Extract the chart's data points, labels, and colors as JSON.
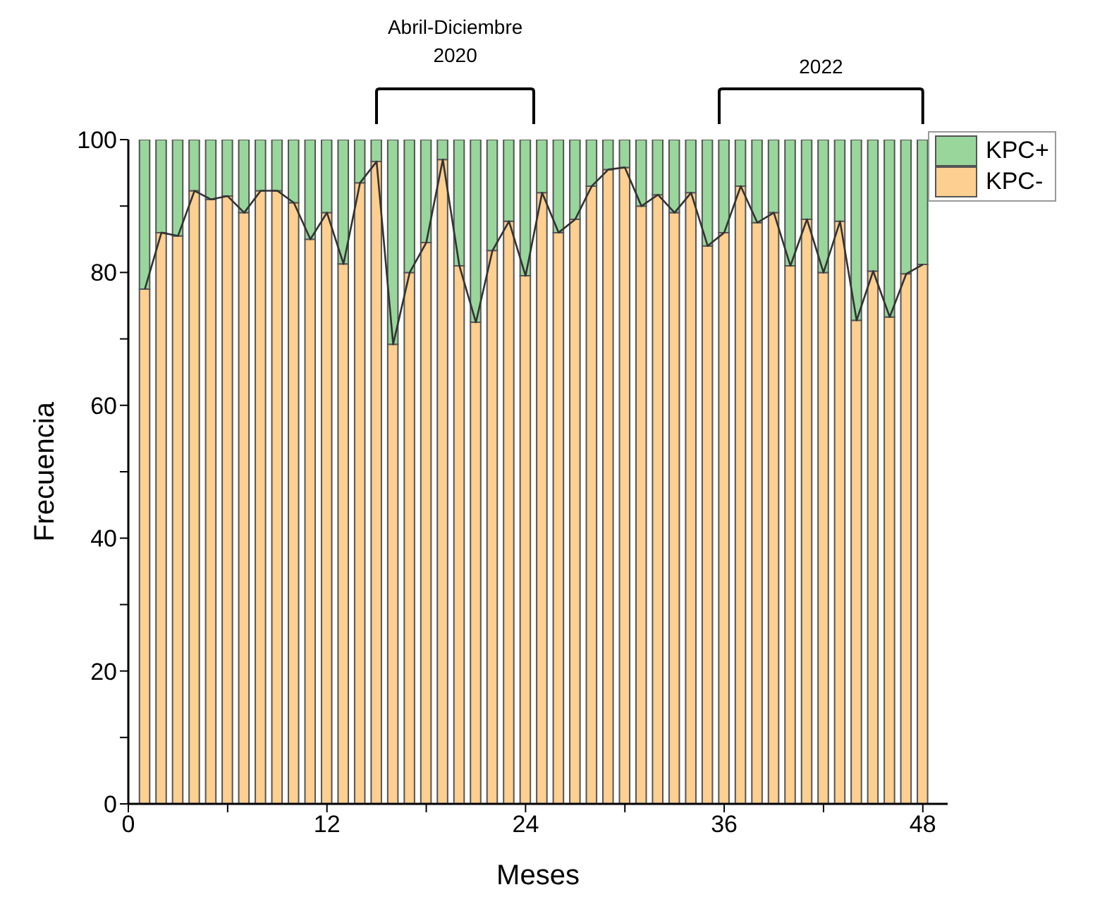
{
  "chart_data": {
    "type": "bar",
    "stacked": true,
    "xlabel": "Meses",
    "ylabel": "Frecuencia",
    "annotations": [
      "Abril-Diciembre 2020",
      "2022"
    ],
    "x": [
      1,
      2,
      3,
      4,
      5,
      6,
      7,
      8,
      9,
      10,
      11,
      12,
      13,
      14,
      15,
      16,
      17,
      18,
      19,
      20,
      21,
      22,
      23,
      24,
      25,
      26,
      27,
      28,
      29,
      30,
      31,
      32,
      33,
      34,
      35,
      36,
      37,
      38,
      39,
      40,
      41,
      42,
      43,
      44,
      45,
      46,
      47,
      48
    ],
    "series": [
      {
        "name": "KPC-",
        "color": "#fdcf90",
        "values": [
          77.5,
          86,
          85.5,
          92.3,
          91,
          91.5,
          89,
          92.3,
          92.3,
          90.5,
          85,
          89,
          81.3,
          93.5,
          96.7,
          69.2,
          80,
          84.5,
          97,
          81,
          72.5,
          83.3,
          87.7,
          79.5,
          92,
          86,
          88,
          93,
          95.5,
          95.8,
          90,
          91.7,
          89,
          92,
          84,
          86,
          93,
          87.5,
          89,
          81,
          88,
          80,
          87.7,
          72.8,
          80.2,
          73.3,
          79.8,
          81.2
        ]
      },
      {
        "name": "KPC+",
        "color": "#99d69c",
        "values": [
          22.5,
          14,
          14.5,
          7.7,
          9,
          8.5,
          11,
          7.7,
          7.7,
          9.5,
          15,
          11,
          18.7,
          6.5,
          3.3,
          30.8,
          20,
          15.5,
          3,
          19,
          27.5,
          16.7,
          12.3,
          20.5,
          8,
          14,
          12,
          7,
          4.5,
          4.2,
          10,
          8.3,
          11,
          8,
          16,
          14,
          7,
          12.5,
          11,
          19,
          12,
          20,
          12.3,
          27.2,
          19.8,
          26.7,
          20.2,
          18.8
        ]
      },
      {
        "type": "line",
        "color": "#333333",
        "values": [
          77.5,
          86,
          85.5,
          92.3,
          91,
          91.5,
          89,
          92.3,
          92.3,
          90.5,
          85,
          89,
          81.3,
          93.5,
          96.7,
          69.2,
          80,
          84.5,
          97,
          81,
          72.5,
          83.3,
          87.7,
          79.5,
          92,
          86,
          88,
          93,
          95.5,
          95.8,
          90,
          91.7,
          89,
          92,
          84,
          86,
          93,
          87.5,
          89,
          81,
          88,
          80,
          87.7,
          72.8,
          80.2,
          73.3,
          79.8,
          81.2
        ]
      }
    ],
    "xlim": [
      0,
      49.5
    ],
    "xticks": [
      0,
      {
        "value": 6,
        "label": null
      },
      12,
      {
        "value": 18,
        "label": null
      },
      24,
      {
        "value": 30,
        "label": null
      },
      36,
      {
        "value": 42,
        "label": null
      },
      48
    ],
    "ylim": [
      0,
      100
    ],
    "yticks": [
      0,
      {
        "value": 10,
        "label": null
      },
      20,
      {
        "value": 30,
        "label": null
      },
      40,
      {
        "value": 50,
        "label": null
      },
      60,
      {
        "value": 70,
        "label": null
      },
      80,
      {
        "value": 90,
        "label": null
      },
      100
    ],
    "grid": false,
    "legend": "top right"
  }
}
